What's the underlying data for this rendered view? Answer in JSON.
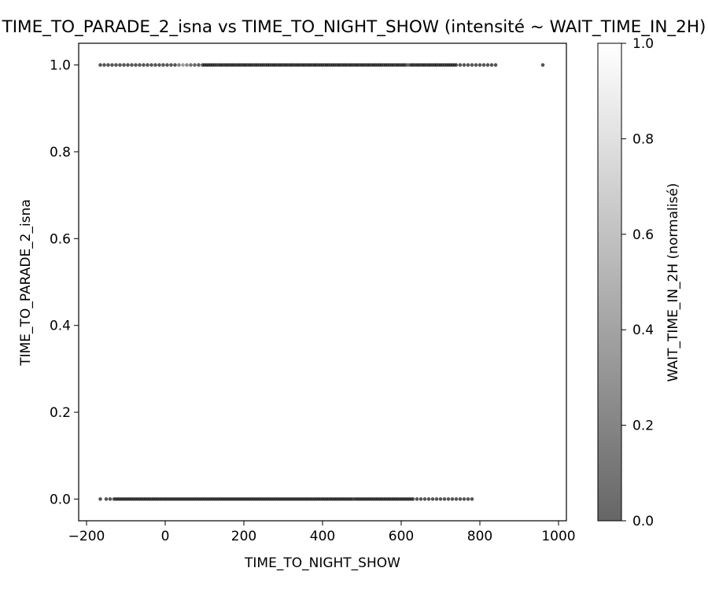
{
  "chart_data": {
    "type": "scatter",
    "title": "TIME_TO_PARADE_2_isna vs TIME_TO_NIGHT_SHOW (intensité ~ WAIT_TIME_IN_2H)",
    "xlabel": "TIME_TO_NIGHT_SHOW",
    "ylabel": "TIME_TO_PARADE_2_isna",
    "xlim": [
      -220,
      1020
    ],
    "ylim": [
      -0.05,
      1.05
    ],
    "xticks": [
      -200,
      0,
      200,
      400,
      600,
      800,
      1000
    ],
    "yticks": [
      0.0,
      0.2,
      0.4,
      0.6,
      0.8,
      1.0
    ],
    "xtick_labels": [
      "−200",
      "0",
      "200",
      "400",
      "600",
      "800",
      "1000"
    ],
    "ytick_labels": [
      "0.0",
      "0.2",
      "0.4",
      "0.6",
      "0.8",
      "1.0"
    ],
    "grid": false,
    "colorbar": {
      "label": "WAIT_TIME_IN_2H (normalisé)",
      "range": [
        0.0,
        1.0
      ],
      "ticks": [
        0.0,
        0.2,
        0.4,
        0.6,
        0.8,
        1.0
      ],
      "tick_labels": [
        "0.0",
        "0.2",
        "0.4",
        "0.6",
        "0.8",
        "1.0"
      ],
      "colormap": "gray",
      "alpha": 0.6
    },
    "series": [
      {
        "y": 1,
        "x": [
          -165,
          -155,
          -145,
          -135,
          -125,
          -115,
          -105,
          -95,
          -85,
          -75,
          -65,
          -55,
          -45,
          -35,
          -25,
          -15,
          -5,
          5,
          15,
          25,
          35,
          45,
          55,
          65,
          75,
          85,
          95,
          100,
          105,
          110,
          115,
          120,
          125,
          130,
          135,
          140,
          145,
          150,
          155,
          160,
          165,
          170,
          175,
          180,
          185,
          190,
          195,
          200,
          205,
          210,
          215,
          220,
          225,
          230,
          235,
          240,
          245,
          250,
          255,
          260,
          265,
          270,
          275,
          280,
          285,
          290,
          295,
          300,
          305,
          310,
          315,
          320,
          325,
          330,
          335,
          340,
          345,
          350,
          355,
          360,
          365,
          370,
          375,
          380,
          385,
          390,
          395,
          400,
          405,
          410,
          415,
          420,
          425,
          430,
          435,
          440,
          445,
          450,
          455,
          460,
          465,
          470,
          475,
          480,
          485,
          490,
          495,
          500,
          505,
          510,
          515,
          520,
          525,
          530,
          535,
          540,
          545,
          550,
          555,
          560,
          565,
          570,
          575,
          580,
          585,
          590,
          595,
          600,
          605,
          610,
          615,
          620,
          625,
          630,
          635,
          640,
          645,
          650,
          655,
          660,
          665,
          670,
          675,
          680,
          685,
          690,
          695,
          700,
          705,
          710,
          715,
          720,
          725,
          730,
          735,
          740,
          750,
          760,
          770,
          780,
          790,
          800,
          810,
          820,
          830,
          840,
          960
        ],
        "intensity": [
          0.05,
          0.05,
          0.05,
          0.05,
          0.05,
          0.05,
          0.05,
          0.05,
          0.05,
          0.05,
          0.05,
          0.05,
          0.05,
          0.05,
          0.05,
          0.05,
          0.05,
          0.05,
          0.05,
          0.05,
          0.3,
          0.45,
          0.35,
          0.2,
          0.15,
          0.1,
          0.05,
          0.05,
          0.05,
          0.05,
          0.05,
          0.05,
          0.05,
          0.1,
          0.1,
          0.05,
          0.05,
          0.1,
          0.05,
          0.05,
          0.1,
          0.05,
          0.05,
          0.1,
          0.05,
          0.05,
          0.1,
          0.05,
          0.05,
          0.1,
          0.05,
          0.05,
          0.1,
          0.05,
          0.05,
          0.1,
          0.05,
          0.05,
          0.1,
          0.05,
          0.05,
          0.1,
          0.05,
          0.05,
          0.1,
          0.05,
          0.05,
          0.1,
          0.05,
          0.05,
          0.1,
          0.05,
          0.05,
          0.1,
          0.05,
          0.05,
          0.1,
          0.05,
          0.05,
          0.1,
          0.05,
          0.05,
          0.1,
          0.05,
          0.05,
          0.1,
          0.05,
          0.05,
          0.1,
          0.05,
          0.05,
          0.1,
          0.05,
          0.05,
          0.1,
          0.05,
          0.05,
          0.1,
          0.05,
          0.05,
          0.1,
          0.05,
          0.05,
          0.1,
          0.05,
          0.05,
          0.1,
          0.05,
          0.05,
          0.1,
          0.05,
          0.05,
          0.1,
          0.05,
          0.05,
          0.1,
          0.05,
          0.05,
          0.1,
          0.05,
          0.05,
          0.1,
          0.05,
          0.05,
          0.1,
          0.05,
          0.05,
          0.1,
          0.05,
          0.05,
          0.25,
          0.3,
          0.05,
          0.05,
          0.1,
          0.05,
          0.05,
          0.1,
          0.05,
          0.05,
          0.1,
          0.05,
          0.05,
          0.1,
          0.05,
          0.05,
          0.1,
          0.05,
          0.05,
          0.1,
          0.05,
          0.05,
          0.05,
          0.05,
          0.05,
          0.05,
          0.05,
          0.05,
          0.05,
          0.05,
          0.05,
          0.05,
          0.05,
          0.05,
          0.05,
          0.05,
          0.05
        ]
      },
      {
        "y": 0,
        "x": [
          -165,
          -150,
          -140,
          -130,
          -125,
          -120,
          -115,
          -110,
          -105,
          -100,
          -95,
          -90,
          -85,
          -80,
          -75,
          -70,
          -65,
          -60,
          -55,
          -50,
          -45,
          -40,
          -35,
          -30,
          -25,
          -20,
          -15,
          -10,
          -5,
          0,
          5,
          10,
          15,
          20,
          25,
          30,
          35,
          40,
          45,
          50,
          55,
          60,
          65,
          70,
          75,
          80,
          85,
          90,
          95,
          100,
          105,
          110,
          115,
          120,
          125,
          130,
          135,
          140,
          145,
          150,
          155,
          160,
          165,
          170,
          175,
          180,
          185,
          190,
          195,
          200,
          205,
          210,
          215,
          220,
          225,
          230,
          235,
          240,
          245,
          250,
          255,
          260,
          265,
          270,
          275,
          280,
          285,
          290,
          295,
          300,
          305,
          310,
          315,
          320,
          325,
          330,
          335,
          340,
          345,
          350,
          355,
          360,
          365,
          370,
          375,
          380,
          385,
          390,
          395,
          400,
          405,
          410,
          415,
          420,
          425,
          430,
          435,
          440,
          445,
          450,
          455,
          460,
          465,
          470,
          475,
          480,
          485,
          490,
          495,
          500,
          505,
          510,
          515,
          520,
          525,
          530,
          535,
          540,
          545,
          550,
          555,
          560,
          565,
          570,
          575,
          580,
          585,
          590,
          595,
          600,
          605,
          610,
          615,
          620,
          625,
          630,
          640,
          650,
          660,
          670,
          680,
          690,
          700,
          710,
          720,
          730,
          740,
          750,
          760,
          770,
          780
        ],
        "intensity": [
          0.05,
          0.05,
          0.05,
          0.05,
          0.05,
          0.05,
          0.05,
          0.05,
          0.05,
          0.05,
          0.05,
          0.05,
          0.05,
          0.05,
          0.05,
          0.05,
          0.05,
          0.05,
          0.05,
          0.05,
          0.05,
          0.05,
          0.05,
          0.05,
          0.05,
          0.05,
          0.05,
          0.05,
          0.05,
          0.05,
          0.05,
          0.05,
          0.05,
          0.05,
          0.05,
          0.05,
          0.05,
          0.05,
          0.05,
          0.05,
          0.05,
          0.05,
          0.05,
          0.05,
          0.05,
          0.05,
          0.05,
          0.05,
          0.05,
          0.05,
          0.05,
          0.05,
          0.05,
          0.05,
          0.05,
          0.05,
          0.05,
          0.05,
          0.05,
          0.05,
          0.05,
          0.05,
          0.05,
          0.05,
          0.05,
          0.05,
          0.05,
          0.05,
          0.05,
          0.05,
          0.05,
          0.05,
          0.05,
          0.05,
          0.05,
          0.05,
          0.05,
          0.05,
          0.05,
          0.05,
          0.05,
          0.05,
          0.05,
          0.05,
          0.05,
          0.05,
          0.05,
          0.05,
          0.05,
          0.05,
          0.05,
          0.05,
          0.05,
          0.05,
          0.05,
          0.05,
          0.05,
          0.05,
          0.05,
          0.05,
          0.05,
          0.05,
          0.05,
          0.05,
          0.05,
          0.05,
          0.05,
          0.05,
          0.05,
          0.05,
          0.05,
          0.05,
          0.05,
          0.05,
          0.05,
          0.05,
          0.05,
          0.05,
          0.05,
          0.05,
          0.05,
          0.05,
          0.05,
          0.05,
          0.05,
          0.15,
          0.05,
          0.05,
          0.05,
          0.05,
          0.05,
          0.05,
          0.05,
          0.05,
          0.05,
          0.05,
          0.05,
          0.05,
          0.05,
          0.05,
          0.05,
          0.05,
          0.05,
          0.05,
          0.05,
          0.05,
          0.05,
          0.05,
          0.05,
          0.05,
          0.05,
          0.05,
          0.05,
          0.05,
          0.05,
          0.05,
          0.05,
          0.05,
          0.05,
          0.05,
          0.05,
          0.05,
          0.05,
          0.05,
          0.05,
          0.05,
          0.05,
          0.05,
          0.05,
          0.05,
          0.05
        ]
      }
    ]
  }
}
